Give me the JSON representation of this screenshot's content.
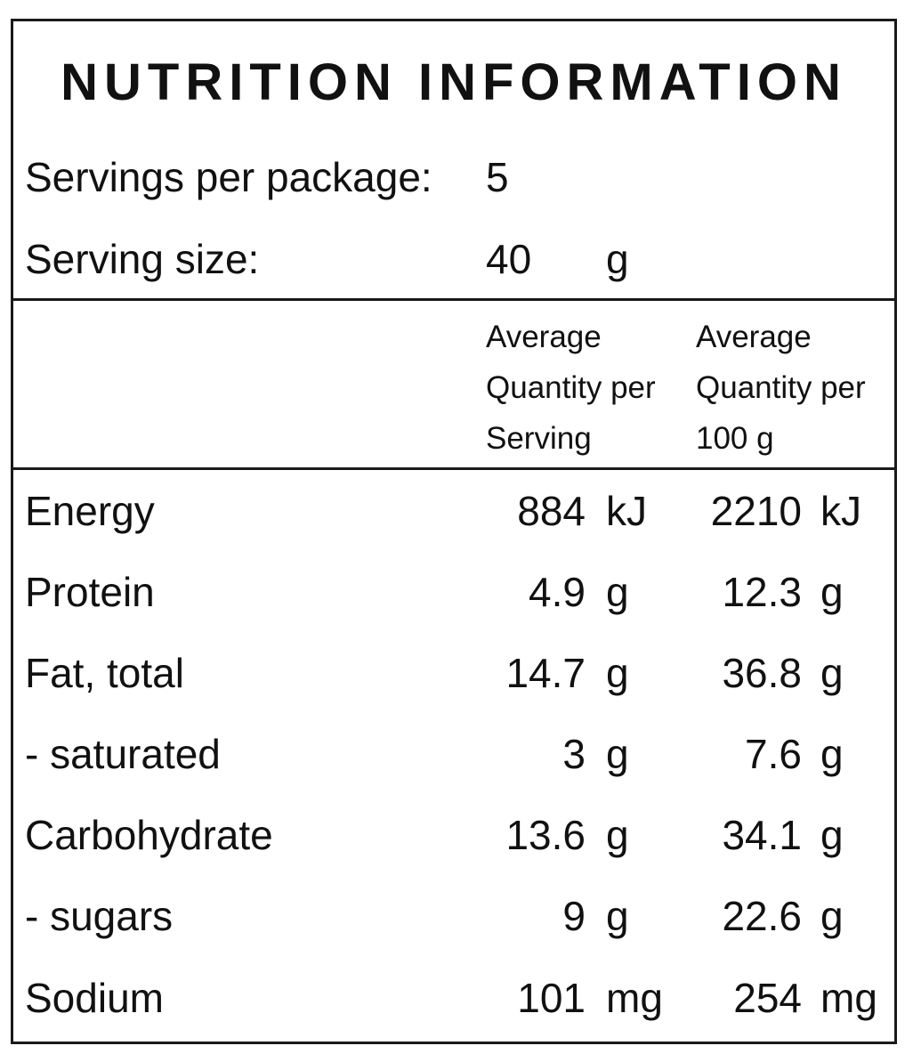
{
  "title": "NUTRITION INFORMATION",
  "servings_per_package": {
    "label": "Servings per package:",
    "value": "5"
  },
  "serving_size": {
    "label": "Serving size:",
    "value": "40",
    "unit": "g"
  },
  "table_header": {
    "per_serving": [
      "Average",
      "Quantity per",
      "Serving"
    ],
    "per_100g": [
      "Average",
      "Quantity per",
      "100 g"
    ]
  },
  "rows": [
    {
      "name": "Energy",
      "per_serving": "884",
      "per_serving_unit": "kJ",
      "per_100g": "2210",
      "per_100g_unit": "kJ"
    },
    {
      "name": "Protein",
      "per_serving": "4.9",
      "per_serving_unit": "g",
      "per_100g": "12.3",
      "per_100g_unit": "g"
    },
    {
      "name": "Fat, total",
      "per_serving": "14.7",
      "per_serving_unit": "g",
      "per_100g": "36.8",
      "per_100g_unit": "g"
    },
    {
      "name": "- saturated",
      "per_serving": "3",
      "per_serving_unit": "g",
      "per_100g": "7.6",
      "per_100g_unit": "g"
    },
    {
      "name": "Carbohydrate",
      "per_serving": "13.6",
      "per_serving_unit": "g",
      "per_100g": "34.1",
      "per_100g_unit": "g"
    },
    {
      "name": "- sugars",
      "per_serving": "9",
      "per_serving_unit": "g",
      "per_100g": "22.6",
      "per_100g_unit": "g"
    },
    {
      "name": "Sodium",
      "per_serving": "101",
      "per_serving_unit": "mg",
      "per_100g": "254",
      "per_100g_unit": "mg"
    }
  ]
}
